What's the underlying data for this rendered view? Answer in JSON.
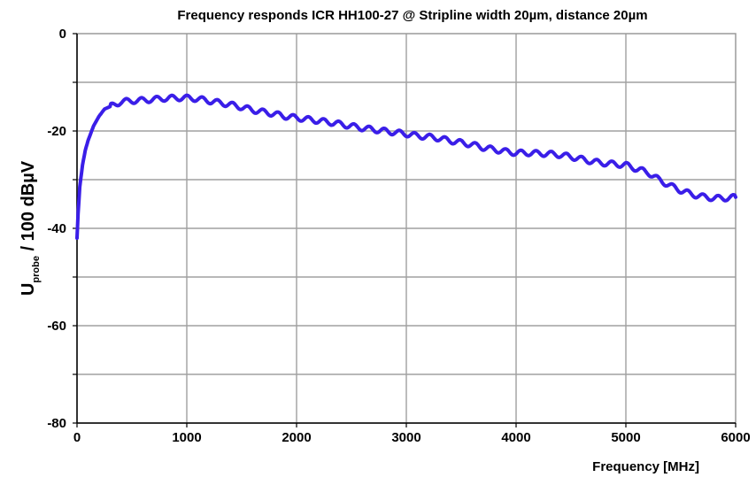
{
  "chart_data": {
    "type": "line",
    "title": "Frequency responds ICR HH100-27 @ Stripline width 20µm, distance 20µm",
    "xlabel": "Frequency [MHz]",
    "ylabel": {
      "main": "U",
      "subscript": "probe",
      "rest": " / 100 dBµV"
    },
    "xlim": [
      0,
      6000
    ],
    "ylim": [
      -80,
      0
    ],
    "x_ticks": [
      "0",
      "1000",
      "2000",
      "3000",
      "4000",
      "5000",
      "6000"
    ],
    "y_ticks": [
      "0",
      "-20",
      "-40",
      "-60",
      "-80"
    ],
    "x_tick_values": [
      0,
      1000,
      2000,
      3000,
      4000,
      5000,
      6000
    ],
    "y_tick_values": [
      0,
      -20,
      -40,
      -60,
      -80
    ],
    "x_grid_values": [
      1000,
      2000,
      3000,
      4000,
      5000
    ],
    "y_grid_values": [
      -10,
      -20,
      -30,
      -40,
      -50,
      -60,
      -70
    ],
    "grid": true,
    "legend": "none",
    "series": [
      {
        "color": "#3a1ee8",
        "x": [
          0,
          10,
          25,
          50,
          75,
          100,
          150,
          200,
          250,
          300,
          400,
          500,
          600,
          700,
          800,
          900,
          1000,
          1100,
          1200,
          1300,
          1400,
          1500,
          1600,
          1700,
          1800,
          1900,
          2000,
          2100,
          2200,
          2300,
          2400,
          2500,
          2600,
          2700,
          2800,
          2900,
          3000,
          3100,
          3200,
          3300,
          3400,
          3500,
          3600,
          3700,
          3800,
          3900,
          4000,
          4100,
          4200,
          4300,
          4400,
          4500,
          4600,
          4700,
          4800,
          4900,
          5000,
          5100,
          5200,
          5300,
          5400,
          5500,
          5600,
          5700,
          5800,
          5900,
          6000
        ],
        "y": [
          -42,
          -37,
          -31.5,
          -27,
          -24,
          -22,
          -19,
          -17,
          -15.5,
          -15,
          -14,
          -13.8,
          -13.7,
          -13.5,
          -13.3,
          -13.2,
          -13.2,
          -13.4,
          -13.8,
          -14.2,
          -14.6,
          -15.1,
          -15.7,
          -16.1,
          -16.5,
          -17,
          -17.3,
          -17.6,
          -17.9,
          -18.2,
          -18.6,
          -19,
          -19.4,
          -19.7,
          -20,
          -20.3,
          -20.6,
          -21,
          -21.2,
          -21.5,
          -22,
          -22.4,
          -22.8,
          -23.4,
          -23.8,
          -24.2,
          -24.5,
          -24.5,
          -24.6,
          -24.7,
          -24.9,
          -25.3,
          -25.8,
          -26.3,
          -26.6,
          -26.8,
          -27,
          -27.8,
          -28.5,
          -30,
          -31.2,
          -32.2,
          -33,
          -33.5,
          -33.8,
          -33.8,
          -33.6
        ]
      }
    ]
  }
}
